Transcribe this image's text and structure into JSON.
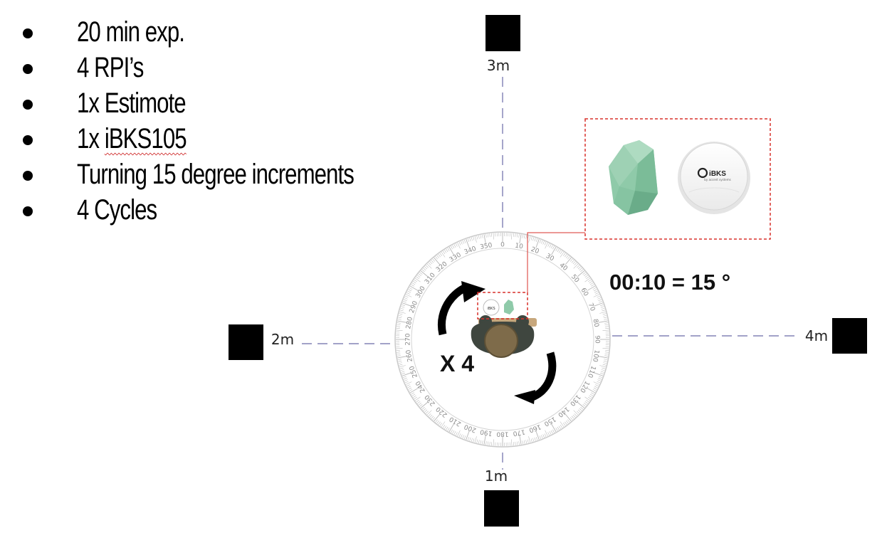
{
  "bullets": [
    {
      "text": "20 min exp."
    },
    {
      "text": "4 RPI’s"
    },
    {
      "text": "1x Estimote"
    },
    {
      "text": "1x iBKS105"
    },
    {
      "text": "Turning 15 degree increments"
    },
    {
      "text": "4 Cycles"
    }
  ],
  "receivers": {
    "top": "3m",
    "left": "2m",
    "right": "4m",
    "bottom": "1m"
  },
  "formula": "00:10 = 15 °",
  "cycles_label": "X 4",
  "beacon_brand": "iBKS",
  "beacon_subtext": "by accent systems",
  "protractor_labels": [
    "0",
    "10",
    "20",
    "30",
    "40",
    "50",
    "60",
    "70",
    "80",
    "90",
    "100",
    "110",
    "120",
    "130",
    "140",
    "150",
    "160",
    "170",
    "180",
    "190",
    "200",
    "210",
    "220",
    "230",
    "240",
    "250",
    "260",
    "270",
    "280",
    "290",
    "300",
    "310",
    "320",
    "330",
    "340",
    "350"
  ],
  "colors": {
    "axis_line": "#6a6aa8",
    "callout_border": "#d9302b",
    "estimote": "#8fcaa9",
    "head": "#7e6b4a",
    "shoulders": "#3f463f",
    "arrow": "#000000"
  }
}
